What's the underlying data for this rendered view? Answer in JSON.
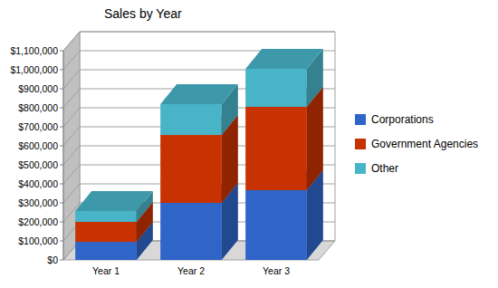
{
  "chart_data": {
    "type": "bar",
    "title": "Sales by Year",
    "stacked": true,
    "grid": true,
    "legend": "right",
    "categories": [
      "Year 1",
      "Year 2",
      "Year 3"
    ],
    "series": [
      {
        "name": "Corporations",
        "color": "#2f64c8",
        "values": [
          95000,
          300000,
          367000
        ]
      },
      {
        "name": "Government Agencies",
        "color": "#c83200",
        "values": [
          105000,
          357000,
          438000
        ]
      },
      {
        "name": "Other",
        "color": "#48b4c8",
        "values": [
          57000,
          162000,
          200000
        ]
      }
    ],
    "ylim": [
      0,
      1100000
    ],
    "yticks": [
      {
        "value": 0,
        "label": "$0"
      },
      {
        "value": 100000,
        "label": "$100,000"
      },
      {
        "value": 200000,
        "label": "$200,000"
      },
      {
        "value": 300000,
        "label": "$300,000"
      },
      {
        "value": 400000,
        "label": "$400,000"
      },
      {
        "value": 500000,
        "label": "$500,000"
      },
      {
        "value": 600000,
        "label": "$600,000"
      },
      {
        "value": 700000,
        "label": "$700,000"
      },
      {
        "value": 800000,
        "label": "$800,000"
      },
      {
        "value": 900000,
        "label": "$900,000"
      },
      {
        "value": 1000000,
        "label": "$1,000,000"
      },
      {
        "value": 1100000,
        "label": "$1,100,000"
      }
    ]
  }
}
